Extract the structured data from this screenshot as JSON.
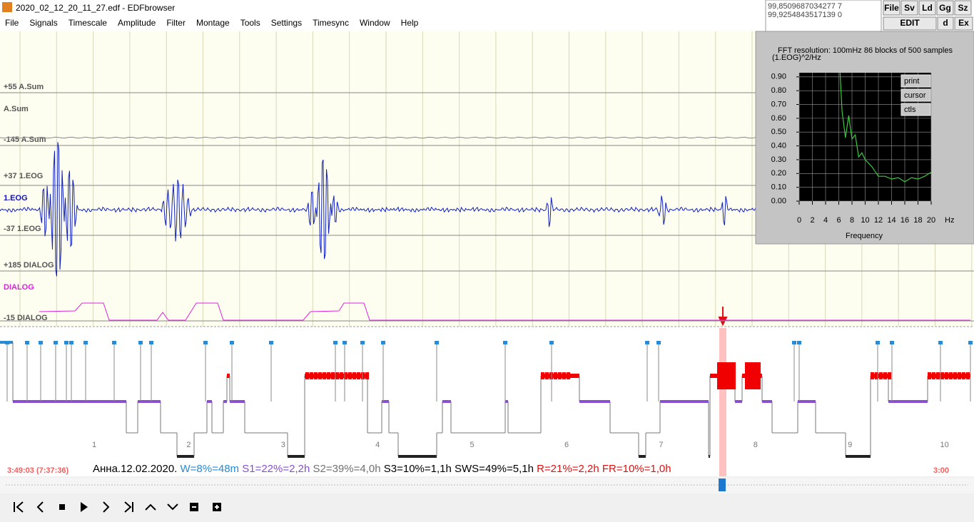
{
  "window": {
    "title": "2020_02_12_20_11_27.edf - EDFbrowser"
  },
  "menu": [
    "File",
    "Signals",
    "Timescale",
    "Amplitude",
    "Filter",
    "Montage",
    "Tools",
    "Settings",
    "Timesync",
    "Window",
    "Help"
  ],
  "cursor_readout": [
    "99,8509687034277 7",
    "99,9254843517139 0"
  ],
  "toolbar": [
    "File",
    "Sv",
    "Ld",
    "Gg",
    "Sz"
  ],
  "edit_buttons": [
    "EDIT",
    "d",
    "Ex"
  ],
  "signal_labels": [
    {
      "text": "+55 A.Sum",
      "color": "#555555"
    },
    {
      "text": "A.Sum",
      "color": "#555555"
    },
    {
      "text": "-145 A.Sum",
      "color": "#555555"
    },
    {
      "text": "+37 1.EOG",
      "color": "#555555"
    },
    {
      "text": "1.EOG",
      "color": "#1010c0"
    },
    {
      "text": "-37 1.EOG",
      "color": "#555555"
    },
    {
      "text": "+185 DIALOG",
      "color": "#555555"
    },
    {
      "text": "DIALOG",
      "color": "#e020e0"
    },
    {
      "text": "-15 DIALOG",
      "color": "#555555"
    }
  ],
  "chart_data": {
    "type": "line",
    "subtitle": "FFT resolution: 100mHz   86 blocks of 500 samples",
    "y_label": "(1.EOG)^2/Hz",
    "x_label": "Frequency",
    "x_unit": "Hz",
    "x": [
      6.2,
      6.5,
      7,
      7.5,
      8,
      8.5,
      9,
      9.5,
      10,
      11,
      12,
      13,
      14,
      15,
      16,
      17,
      18,
      19,
      20
    ],
    "values": [
      0.93,
      0.65,
      0.46,
      0.62,
      0.45,
      0.48,
      0.32,
      0.35,
      0.3,
      0.25,
      0.18,
      0.18,
      0.16,
      0.17,
      0.14,
      0.17,
      0.16,
      0.18,
      0.21
    ],
    "color": "#3cc83c",
    "grid": true,
    "xlim": [
      0,
      20
    ],
    "ylim": [
      0,
      0.93
    ],
    "xticks": [
      0,
      2,
      4,
      6,
      8,
      10,
      12,
      14,
      16,
      18,
      20
    ],
    "yticks": [
      {
        "value": 0.9,
        "label": "0.90"
      },
      {
        "value": 0.8,
        "label": "0.80"
      },
      {
        "value": 0.7,
        "label": "0.70"
      },
      {
        "value": 0.6,
        "label": "0.60"
      },
      {
        "value": 0.5,
        "label": "0.50"
      },
      {
        "value": 0.4,
        "label": "0.40"
      },
      {
        "value": 0.3,
        "label": "0.30"
      },
      {
        "value": 0.2,
        "label": "0.20"
      },
      {
        "value": 0.1,
        "label": "0.10"
      },
      {
        "value": 0,
        "label": "0.00"
      }
    ]
  },
  "fft_buttons": [
    "print",
    "cursor",
    "ctls"
  ],
  "hypnogram_hours": [
    "1",
    "2",
    "3",
    "4",
    "5",
    "6",
    "7",
    "8",
    "9",
    "10"
  ],
  "status": {
    "time_left": "3:49:03 (7:37:36)",
    "time_right": "3:00",
    "summary": [
      {
        "text": "Анна.12.02.2020.",
        "color": "#000000"
      },
      {
        "text": "W=8%=48m",
        "color": "#2a8ad4"
      },
      {
        "text": "S1=22%=2,2h",
        "color": "#8a4fd0"
      },
      {
        "text": "S2=39%=4,0h",
        "color": "#707070"
      },
      {
        "text": "S3=10%=1,1h",
        "color": "#000000"
      },
      {
        "text": "SWS=49%=5,1h",
        "color": "#000000"
      },
      {
        "text": "R=21%=2,2h",
        "color": "#e01010"
      },
      {
        "text": "FR=10%=1,0h",
        "color": "#e01010"
      }
    ]
  }
}
